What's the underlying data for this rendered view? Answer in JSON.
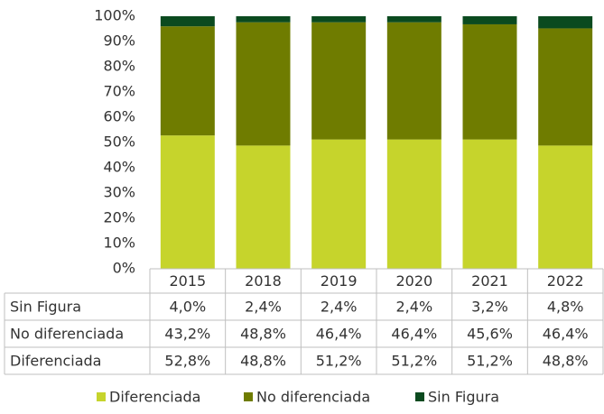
{
  "chart_data": {
    "type": "stacked_bar",
    "categories": [
      "2015",
      "2018",
      "2019",
      "2020",
      "2021",
      "2022"
    ],
    "series": [
      {
        "name": "Diferenciada",
        "color": "#c6d42c",
        "values": [
          52.8,
          48.8,
          51.2,
          51.2,
          51.2,
          48.8
        ],
        "value_labels": [
          "52,8%",
          "48,8%",
          "51,2%",
          "51,2%",
          "51,2%",
          "48,8%"
        ]
      },
      {
        "name": "No diferenciada",
        "color": "#6f7c00",
        "values": [
          43.2,
          48.8,
          46.4,
          46.4,
          45.6,
          46.4
        ],
        "value_labels": [
          "43,2%",
          "48,8%",
          "46,4%",
          "46,4%",
          "45,6%",
          "46,4%"
        ]
      },
      {
        "name": "Sin Figura",
        "color": "#0b4a1f",
        "values": [
          4.0,
          2.4,
          2.4,
          2.4,
          3.2,
          4.8
        ],
        "value_labels": [
          "4,0%",
          "2,4%",
          "2,4%",
          "2,4%",
          "3,2%",
          "4,8%"
        ]
      }
    ],
    "ylim": [
      0,
      100
    ],
    "yticks": [
      {
        "value": 0,
        "label": "0%"
      },
      {
        "value": 10,
        "label": "10%"
      },
      {
        "value": 20,
        "label": "20%"
      },
      {
        "value": 30,
        "label": "30%"
      },
      {
        "value": 40,
        "label": "40%"
      },
      {
        "value": 50,
        "label": "50%"
      },
      {
        "value": 60,
        "label": "60%"
      },
      {
        "value": 70,
        "label": "70%"
      },
      {
        "value": 80,
        "label": "80%"
      },
      {
        "value": 90,
        "label": "90%"
      },
      {
        "value": 100,
        "label": "100%"
      }
    ],
    "legend": "bottom"
  }
}
